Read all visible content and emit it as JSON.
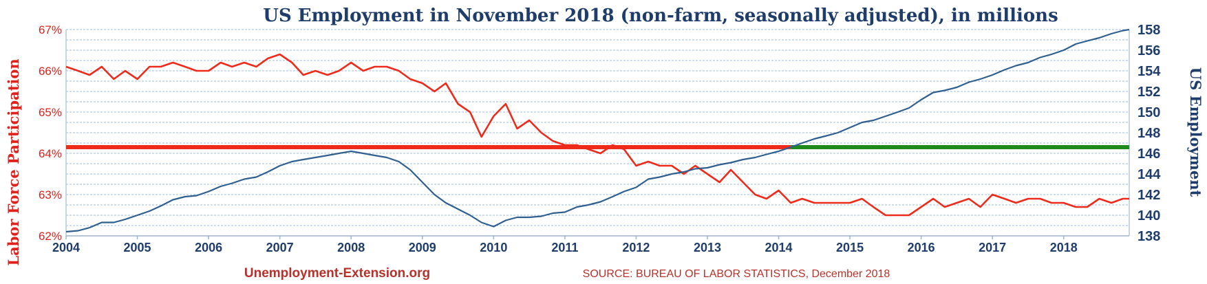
{
  "chart_data": {
    "type": "line",
    "title": "US Employment in November 2018 (non-farm, seasonally adjusted), in millions",
    "y_left_label": "Labor Force Participation",
    "y_right_label": "US Employment",
    "x_ticks": [
      "2004",
      "2005",
      "2006",
      "2007",
      "2008",
      "2009",
      "2010",
      "2011",
      "2012",
      "2013",
      "2014",
      "2015",
      "2016",
      "2017",
      "2018"
    ],
    "x_range": [
      2004,
      2018.92
    ],
    "y_left_ticks": [
      "62%",
      "63%",
      "64%",
      "65%",
      "66%",
      "67%"
    ],
    "y_left_range": [
      62,
      67
    ],
    "y_right_ticks": [
      "138",
      "140",
      "142",
      "144",
      "146",
      "148",
      "150",
      "152",
      "154",
      "156",
      "158"
    ],
    "y_right_range": [
      138,
      158
    ],
    "grid": true,
    "reference_line": {
      "value_employment": 146.6,
      "color_above": "#1e8a1e",
      "color_below": "#ee2a1a"
    },
    "series": [
      {
        "name": "Labor Force Participation",
        "axis": "left",
        "color": "#ee2a1a",
        "x": [
          2004.0,
          2004.17,
          2004.33,
          2004.5,
          2004.67,
          2004.83,
          2005.0,
          2005.17,
          2005.33,
          2005.5,
          2005.67,
          2005.83,
          2006.0,
          2006.17,
          2006.33,
          2006.5,
          2006.67,
          2006.83,
          2007.0,
          2007.17,
          2007.33,
          2007.5,
          2007.67,
          2007.83,
          2008.0,
          2008.17,
          2008.33,
          2008.5,
          2008.67,
          2008.83,
          2009.0,
          2009.17,
          2009.33,
          2009.5,
          2009.67,
          2009.83,
          2010.0,
          2010.17,
          2010.33,
          2010.5,
          2010.67,
          2010.83,
          2011.0,
          2011.17,
          2011.33,
          2011.5,
          2011.67,
          2011.83,
          2012.0,
          2012.17,
          2012.33,
          2012.5,
          2012.67,
          2012.83,
          2013.0,
          2013.17,
          2013.33,
          2013.5,
          2013.67,
          2013.83,
          2014.0,
          2014.17,
          2014.33,
          2014.5,
          2014.67,
          2014.83,
          2015.0,
          2015.17,
          2015.33,
          2015.5,
          2015.67,
          2015.83,
          2016.0,
          2016.17,
          2016.33,
          2016.5,
          2016.67,
          2016.83,
          2017.0,
          2017.17,
          2017.33,
          2017.5,
          2017.67,
          2017.83,
          2018.0,
          2018.17,
          2018.33,
          2018.5,
          2018.67,
          2018.83,
          2018.92
        ],
        "values": [
          66.1,
          66.0,
          65.9,
          66.1,
          65.8,
          66.0,
          65.8,
          66.1,
          66.1,
          66.2,
          66.1,
          66.0,
          66.0,
          66.2,
          66.1,
          66.2,
          66.1,
          66.3,
          66.4,
          66.2,
          65.9,
          66.0,
          65.9,
          66.0,
          66.2,
          66.0,
          66.1,
          66.1,
          66.0,
          65.8,
          65.7,
          65.5,
          65.7,
          65.2,
          65.0,
          64.4,
          64.9,
          65.2,
          64.6,
          64.8,
          64.5,
          64.3,
          64.2,
          64.2,
          64.1,
          64.0,
          64.2,
          64.1,
          63.7,
          63.8,
          63.7,
          63.7,
          63.5,
          63.7,
          63.5,
          63.3,
          63.6,
          63.3,
          63.0,
          62.9,
          63.1,
          62.8,
          62.9,
          62.8,
          62.8,
          62.8,
          62.8,
          62.9,
          62.7,
          62.5,
          62.5,
          62.5,
          62.7,
          62.9,
          62.7,
          62.8,
          62.9,
          62.7,
          63.0,
          62.9,
          62.8,
          62.9,
          62.9,
          62.8,
          62.8,
          62.7,
          62.7,
          62.9,
          62.8,
          62.9,
          62.9
        ]
      },
      {
        "name": "US Employment",
        "axis": "right",
        "color": "#2f5f8f",
        "x": [
          2004.0,
          2004.17,
          2004.33,
          2004.5,
          2004.67,
          2004.83,
          2005.0,
          2005.17,
          2005.33,
          2005.5,
          2005.67,
          2005.83,
          2006.0,
          2006.17,
          2006.33,
          2006.5,
          2006.67,
          2006.83,
          2007.0,
          2007.17,
          2007.33,
          2007.5,
          2007.67,
          2007.83,
          2008.0,
          2008.17,
          2008.33,
          2008.5,
          2008.67,
          2008.83,
          2009.0,
          2009.17,
          2009.33,
          2009.5,
          2009.67,
          2009.83,
          2010.0,
          2010.17,
          2010.33,
          2010.5,
          2010.67,
          2010.83,
          2011.0,
          2011.17,
          2011.33,
          2011.5,
          2011.67,
          2011.83,
          2012.0,
          2012.17,
          2012.33,
          2012.5,
          2012.67,
          2012.83,
          2013.0,
          2013.17,
          2013.33,
          2013.5,
          2013.67,
          2013.83,
          2014.0,
          2014.17,
          2014.33,
          2014.5,
          2014.67,
          2014.83,
          2015.0,
          2015.17,
          2015.33,
          2015.5,
          2015.67,
          2015.83,
          2016.0,
          2016.17,
          2016.33,
          2016.5,
          2016.67,
          2016.83,
          2017.0,
          2017.17,
          2017.33,
          2017.5,
          2017.67,
          2017.83,
          2018.0,
          2018.17,
          2018.33,
          2018.5,
          2018.67,
          2018.83,
          2018.92
        ],
        "values": [
          138.4,
          138.5,
          138.8,
          139.3,
          139.3,
          139.6,
          140.0,
          140.4,
          140.9,
          141.5,
          141.8,
          141.9,
          142.3,
          142.8,
          143.1,
          143.5,
          143.7,
          144.2,
          144.8,
          145.2,
          145.4,
          145.6,
          145.8,
          146.0,
          146.2,
          146.0,
          145.8,
          145.6,
          145.2,
          144.4,
          143.2,
          142.0,
          141.2,
          140.6,
          140.0,
          139.3,
          138.9,
          139.5,
          139.8,
          139.8,
          139.9,
          140.2,
          140.3,
          140.8,
          141.0,
          141.3,
          141.8,
          142.3,
          142.7,
          143.5,
          143.7,
          144.0,
          144.2,
          144.5,
          144.6,
          144.9,
          145.1,
          145.4,
          145.6,
          145.9,
          146.2,
          146.6,
          147.0,
          147.4,
          147.7,
          148.0,
          148.5,
          149.0,
          149.2,
          149.6,
          150.0,
          150.4,
          151.2,
          151.9,
          152.1,
          152.4,
          152.9,
          153.2,
          153.6,
          154.1,
          154.5,
          154.8,
          155.3,
          155.6,
          156.0,
          156.6,
          156.9,
          157.2,
          157.6,
          157.9,
          158.0
        ]
      }
    ]
  },
  "footer": {
    "brand": "Unemployment-Extension.org",
    "source": "SOURCE: BUREAU OF LABOR STATISTICS,  December 2018"
  }
}
